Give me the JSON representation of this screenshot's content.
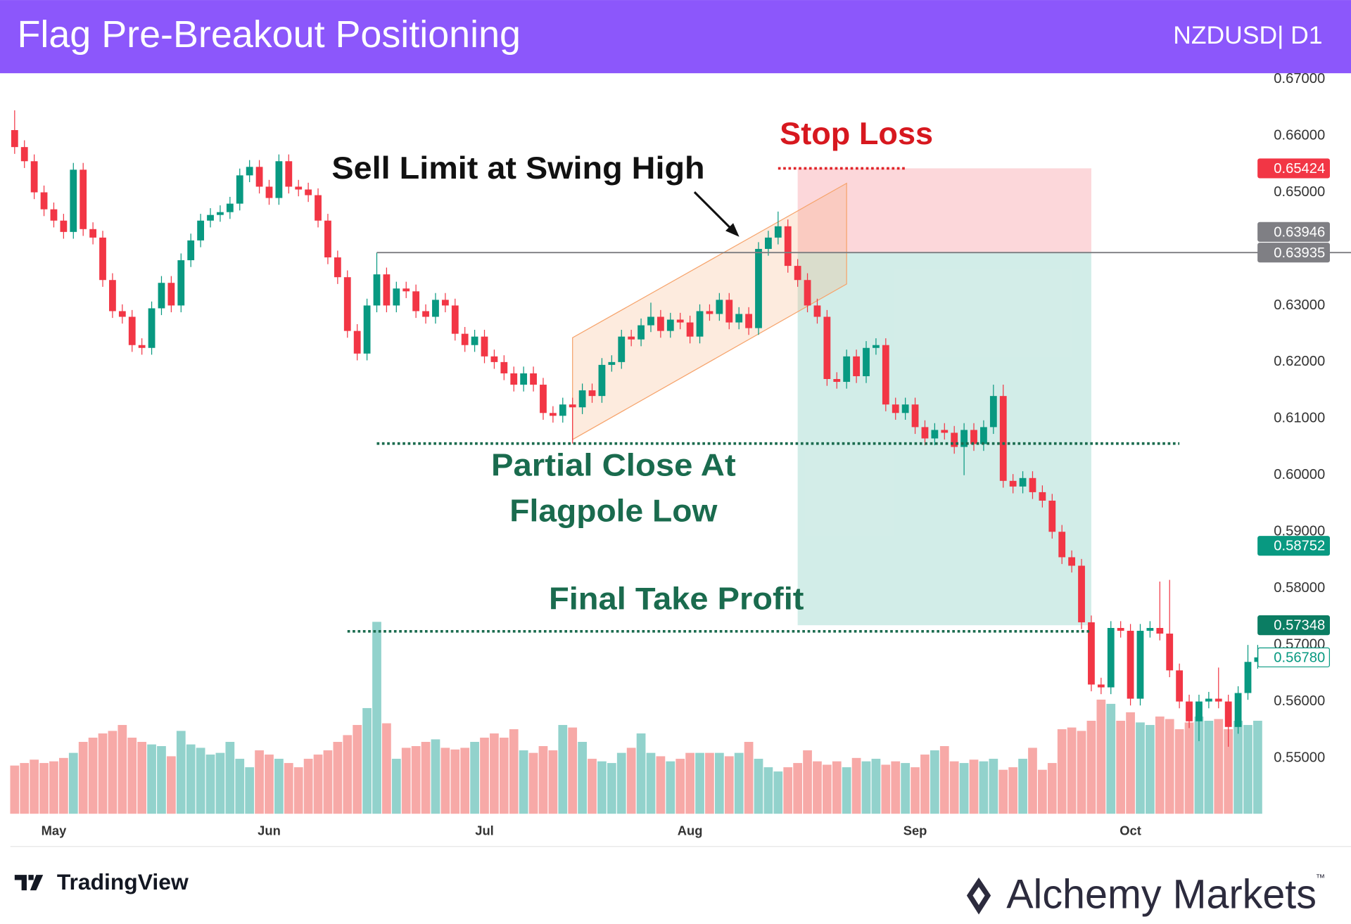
{
  "chart_data": {
    "type": "candlestick",
    "title": "Flag Pre-Breakout Positioning",
    "symbol": "NZDUSD| D1",
    "categories": [
      null,
      null,
      null,
      null,
      "May",
      null,
      null,
      null,
      null,
      null,
      null,
      null,
      null,
      null,
      null,
      null,
      null,
      null,
      null,
      null,
      null,
      null,
      null,
      null,
      null,
      null,
      "Jun",
      null,
      null,
      null,
      null,
      null,
      null,
      null,
      null,
      null,
      null,
      null,
      null,
      null,
      null,
      null,
      null,
      null,
      null,
      null,
      null,
      null,
      "Jul",
      null,
      null,
      null,
      null,
      null,
      null,
      null,
      null,
      null,
      null,
      null,
      null,
      null,
      null,
      null,
      null,
      null,
      null,
      null,
      null,
      "Aug",
      null,
      null,
      null,
      null,
      null,
      null,
      null,
      null,
      null,
      null,
      null,
      null,
      null,
      null,
      null,
      null,
      null,
      null,
      null,
      null,
      null,
      null,
      "Sep",
      null,
      null,
      null,
      null,
      null,
      null,
      null,
      null,
      null,
      null,
      null,
      null,
      null,
      null,
      null,
      null,
      null,
      null,
      null,
      null,
      null,
      "Oct",
      null,
      null,
      null,
      null,
      null,
      null,
      null,
      null,
      null,
      null,
      null,
      null,
      null
    ],
    "open": [
      0.661,
      0.658,
      0.6555,
      0.65,
      0.647,
      0.645,
      0.643,
      0.654,
      0.6435,
      0.642,
      0.6345,
      0.629,
      0.628,
      0.623,
      0.6225,
      0.6295,
      0.634,
      0.63,
      0.638,
      0.6415,
      0.645,
      0.646,
      0.6465,
      0.648,
      0.653,
      0.6545,
      0.651,
      0.649,
      0.6555,
      0.651,
      0.6505,
      0.6495,
      0.645,
      0.6385,
      0.635,
      0.6255,
      0.6215,
      0.63,
      0.6355,
      0.63,
      0.633,
      0.6325,
      0.629,
      0.628,
      0.631,
      0.63,
      0.625,
      0.623,
      0.6245,
      0.621,
      0.62,
      0.618,
      0.616,
      0.618,
      0.616,
      0.611,
      0.6105,
      0.6125,
      0.612,
      0.615,
      0.614,
      0.6195,
      0.62,
      0.6245,
      0.624,
      0.6265,
      0.628,
      0.6255,
      0.6275,
      0.627,
      0.6245,
      0.629,
      0.6285,
      0.631,
      0.627,
      0.6285,
      0.626,
      0.64,
      0.642,
      0.644,
      0.637,
      0.6345,
      0.63,
      0.628,
      0.617,
      0.6165,
      0.621,
      0.6175,
      0.6225,
      0.623,
      0.6125,
      0.611,
      0.6125,
      0.6085,
      0.6065,
      0.608,
      0.6075,
      0.605,
      0.608,
      0.6055,
      0.6085,
      0.614,
      0.599,
      0.598,
      0.5995,
      0.597,
      0.5955,
      0.59,
      0.5855,
      0.584,
      0.574,
      0.563,
      0.5625,
      0.573,
      0.5725,
      0.5605,
      0.5725,
      0.573,
      0.572,
      0.5655,
      0.56,
      0.5565,
      0.56,
      0.5605,
      0.56,
      0.5555,
      0.5615,
      0.567
    ],
    "high": [
      0.6645,
      0.6592,
      0.6567,
      0.6512,
      0.6482,
      0.6462,
      0.6552,
      0.6552,
      0.6447,
      0.6432,
      0.6357,
      0.6302,
      0.6292,
      0.6242,
      0.6307,
      0.6352,
      0.6352,
      0.6392,
      0.6427,
      0.6462,
      0.6472,
      0.6477,
      0.6492,
      0.6542,
      0.6557,
      0.6557,
      0.6522,
      0.6567,
      0.6567,
      0.6522,
      0.6517,
      0.6507,
      0.6462,
      0.6397,
      0.6362,
      0.6267,
      0.6312,
      0.63935,
      0.6367,
      0.6342,
      0.6342,
      0.6337,
      0.6302,
      0.6322,
      0.6322,
      0.6312,
      0.6262,
      0.6257,
      0.6257,
      0.6222,
      0.6212,
      0.6192,
      0.6192,
      0.6192,
      0.6172,
      0.6122,
      0.6137,
      0.6137,
      0.6162,
      0.6162,
      0.6207,
      0.6212,
      0.6257,
      0.6257,
      0.6277,
      0.6305,
      0.6292,
      0.6287,
      0.6287,
      0.6282,
      0.6302,
      0.6302,
      0.6322,
      0.6322,
      0.6297,
      0.6297,
      0.6412,
      0.6432,
      0.6466,
      0.6452,
      0.6382,
      0.6357,
      0.6312,
      0.6292,
      0.6182,
      0.6222,
      0.6222,
      0.6237,
      0.6242,
      0.6242,
      0.6137,
      0.6137,
      0.6137,
      0.6097,
      0.6092,
      0.6092,
      0.6087,
      0.6092,
      0.6092,
      0.6097,
      0.616,
      0.616,
      0.6002,
      0.6007,
      0.6007,
      0.5982,
      0.5967,
      0.5912,
      0.5867,
      0.5852,
      0.5752,
      0.5642,
      0.5742,
      0.5742,
      0.5737,
      0.5737,
      0.5742,
      0.5812,
      0.5815,
      0.5667,
      0.5612,
      0.5612,
      0.5617,
      0.566,
      0.5612,
      0.5627,
      0.57,
      0.57
    ],
    "low": [
      0.6568,
      0.6543,
      0.6488,
      0.6458,
      0.6438,
      0.6418,
      0.6418,
      0.6423,
      0.6408,
      0.6333,
      0.6278,
      0.6268,
      0.6218,
      0.6213,
      0.6213,
      0.6283,
      0.6288,
      0.6288,
      0.6368,
      0.6403,
      0.6438,
      0.6448,
      0.6453,
      0.6468,
      0.6518,
      0.6498,
      0.6478,
      0.6478,
      0.6498,
      0.6493,
      0.6483,
      0.6438,
      0.6373,
      0.6338,
      0.6243,
      0.6203,
      0.6203,
      0.6288,
      0.6288,
      0.6288,
      0.6313,
      0.6278,
      0.6268,
      0.6268,
      0.6288,
      0.6238,
      0.6218,
      0.6218,
      0.6198,
      0.6188,
      0.6168,
      0.6148,
      0.6148,
      0.6148,
      0.6098,
      0.6093,
      0.6093,
      0.6056,
      0.6108,
      0.6128,
      0.6128,
      0.6183,
      0.6188,
      0.6228,
      0.6228,
      0.6253,
      0.6243,
      0.6243,
      0.6258,
      0.6233,
      0.6233,
      0.6273,
      0.6273,
      0.6258,
      0.6258,
      0.6248,
      0.6248,
      0.6388,
      0.6408,
      0.6358,
      0.6333,
      0.6288,
      0.6268,
      0.6158,
      0.6153,
      0.6153,
      0.6163,
      0.6163,
      0.6213,
      0.6113,
      0.6098,
      0.6098,
      0.6073,
      0.6053,
      0.6053,
      0.6063,
      0.6038,
      0.6,
      0.6043,
      0.6043,
      0.6073,
      0.5978,
      0.5968,
      0.5968,
      0.5958,
      0.5943,
      0.5888,
      0.5843,
      0.5828,
      0.5728,
      0.5618,
      0.5613,
      0.5613,
      0.5713,
      0.5593,
      0.5593,
      0.5713,
      0.5708,
      0.5643,
      0.5588,
      0.5553,
      0.553,
      0.5588,
      0.5588,
      0.552,
      0.5543,
      0.5603,
      0.5658
    ],
    "close": [
      0.658,
      0.6555,
      0.65,
      0.647,
      0.645,
      0.643,
      0.654,
      0.6435,
      0.642,
      0.6345,
      0.629,
      0.628,
      0.623,
      0.6225,
      0.6295,
      0.634,
      0.63,
      0.638,
      0.6415,
      0.645,
      0.646,
      0.6465,
      0.648,
      0.653,
      0.6545,
      0.651,
      0.649,
      0.6555,
      0.651,
      0.6505,
      0.6495,
      0.645,
      0.6385,
      0.635,
      0.6255,
      0.6215,
      0.63,
      0.6355,
      0.63,
      0.633,
      0.6325,
      0.629,
      0.628,
      0.631,
      0.63,
      0.625,
      0.623,
      0.6245,
      0.621,
      0.62,
      0.618,
      0.616,
      0.618,
      0.616,
      0.611,
      0.6105,
      0.6125,
      0.612,
      0.615,
      0.614,
      0.6195,
      0.62,
      0.6245,
      0.624,
      0.6265,
      0.628,
      0.6255,
      0.6275,
      0.627,
      0.6245,
      0.629,
      0.6285,
      0.631,
      0.627,
      0.6285,
      0.626,
      0.64,
      0.642,
      0.644,
      0.637,
      0.6345,
      0.63,
      0.628,
      0.617,
      0.6165,
      0.621,
      0.6175,
      0.6225,
      0.623,
      0.6125,
      0.611,
      0.6125,
      0.6085,
      0.6065,
      0.608,
      0.6075,
      0.605,
      0.608,
      0.6055,
      0.6085,
      0.614,
      0.599,
      0.598,
      0.5995,
      0.597,
      0.5955,
      0.59,
      0.5855,
      0.584,
      0.574,
      0.563,
      0.5625,
      0.573,
      0.5725,
      0.5605,
      0.5725,
      0.573,
      0.572,
      0.5655,
      0.56,
      0.5565,
      0.56,
      0.5605,
      0.56,
      0.5555,
      0.5615,
      0.567,
      0.5678
    ],
    "volume": [
      57,
      60,
      64,
      60,
      62,
      66,
      72,
      85,
      90,
      95,
      98,
      105,
      90,
      85,
      82,
      80,
      68,
      98,
      82,
      78,
      70,
      72,
      85,
      65,
      55,
      75,
      70,
      65,
      60,
      55,
      65,
      70,
      75,
      85,
      93,
      105,
      125,
      227,
      107,
      65,
      78,
      80,
      85,
      88,
      78,
      76,
      78,
      85,
      90,
      95,
      90,
      100,
      75,
      72,
      80,
      75,
      105,
      102,
      85,
      65,
      62,
      60,
      72,
      78,
      95,
      72,
      68,
      62,
      65,
      72,
      72,
      72,
      72,
      68,
      72,
      85,
      65,
      55,
      50,
      55,
      60,
      75,
      62,
      58,
      62,
      55,
      66,
      62,
      65,
      58,
      62,
      60,
      55,
      70,
      75,
      80,
      62,
      60,
      64,
      62,
      65,
      52,
      55,
      65,
      78,
      52,
      60,
      100,
      102,
      98,
      110,
      135,
      130,
      110,
      120,
      108,
      105,
      115,
      112,
      100,
      108,
      115,
      110,
      112,
      100,
      110,
      105,
      110
    ],
    "volume_lim": [
      0,
      880
    ],
    "up_color": "#089981",
    "down_color": "#f23645",
    "up_volume_color": "#92d2cc",
    "down_volume_color": "#f7a9a7",
    "ylim": [
      0.5394,
      0.6709
    ],
    "yticks": [
      {
        "value": 0.55,
        "label": "0.55000"
      },
      {
        "value": 0.56,
        "label": "0.56000"
      },
      {
        "value": 0.57,
        "label": "0.57000"
      },
      {
        "value": 0.58,
        "label": "0.58000"
      },
      {
        "value": 0.59,
        "label": "0.59000"
      },
      {
        "value": 0.6,
        "label": "0.60000"
      },
      {
        "value": 0.61,
        "label": "0.61000"
      },
      {
        "value": 0.62,
        "label": "0.62000"
      },
      {
        "value": 0.63,
        "label": "0.63000"
      },
      {
        "value": 0.64,
        "label": "0.64000"
      },
      {
        "value": 0.65,
        "label": "0.65000"
      },
      {
        "value": 0.66,
        "label": "0.66000"
      },
      {
        "value": 0.67,
        "label": "0.67000"
      }
    ],
    "position": {
      "stop": 0.65424,
      "entry": 0.63946,
      "target": 0.57348,
      "start": 80,
      "end": 110
    },
    "flag": {
      "start": 57,
      "end": 85,
      "lower": [
        0.6063,
        0.6338
      ],
      "upper": [
        0.6243,
        0.6516
      ],
      "color": "#f6a36b"
    },
    "levels": [
      {
        "value": 0.63935,
        "from": 37,
        "style": "solid",
        "color": "#7d7d80"
      },
      {
        "value": 0.65424,
        "from": 78,
        "to": 91,
        "style": "dotted",
        "color": "#e0262b"
      },
      {
        "value": 0.6056,
        "from": 37,
        "to": 119,
        "style": "dotted",
        "color": "#1a6b4e"
      },
      {
        "value": 0.5724,
        "from": 34,
        "to": 110,
        "style": "dotted",
        "color": "#1a6b4e"
      }
    ],
    "price_tags": [
      {
        "value": 0.65424,
        "color": "#f23645"
      },
      {
        "value": 0.63946,
        "color": "#7f7f84"
      },
      {
        "value": 0.63935,
        "color": "#7f7f84"
      },
      {
        "value": 0.58752,
        "color": "#089981"
      },
      {
        "value": 0.57348,
        "color": "#0b7d63"
      },
      {
        "value": 0.5678,
        "label": "0.56780",
        "color": "#089981",
        "outline": true
      }
    ],
    "annotations": {
      "sell_limit": "Sell Limit at Swing High",
      "stop_loss": "Stop Loss",
      "partial_close": [
        "Partial Close At",
        "Flagpole Low"
      ],
      "final_tp": "Final Take Profit"
    },
    "footer": {
      "left": "TradingView",
      "right": "Alchemy Markets",
      "tm": "™"
    }
  }
}
